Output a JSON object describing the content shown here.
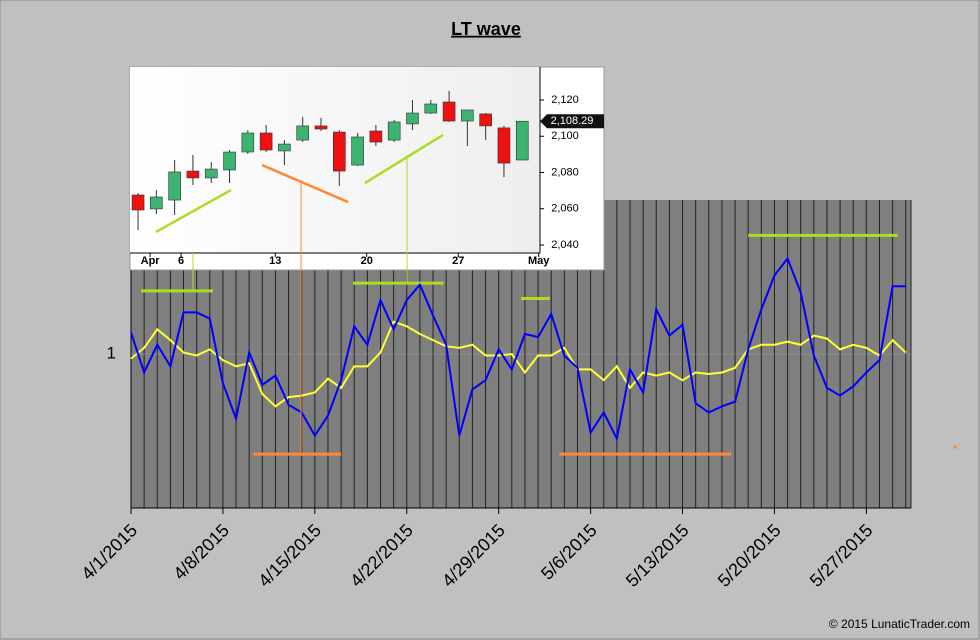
{
  "chart_data": [
    {
      "type": "line",
      "title": "LT wave",
      "x": [
        0,
        1,
        2,
        3,
        4,
        5,
        6,
        7,
        8,
        9,
        10,
        11,
        12,
        13,
        14,
        15,
        16,
        17,
        18,
        19,
        20,
        21,
        22,
        23,
        24,
        25,
        26,
        27,
        28,
        29,
        30,
        31,
        32,
        33,
        34,
        35,
        36,
        37,
        38,
        39,
        40,
        41,
        42,
        43,
        44,
        45,
        46,
        47,
        48,
        49,
        50,
        51,
        52,
        53,
        54,
        55,
        56,
        57,
        58,
        59
      ],
      "series": [
        {
          "color": "#0000ff",
          "values": [
            1.14,
            0.88,
            1.06,
            0.92,
            1.27,
            1.27,
            1.23,
            0.81,
            0.58,
            1.01,
            0.8,
            0.86,
            0.67,
            0.62,
            0.47,
            0.6,
            0.83,
            1.18,
            1.06,
            1.35,
            1.16,
            1.35,
            1.45,
            1.25,
            1.06,
            0.47,
            0.77,
            0.83,
            1.03,
            0.9,
            1.13,
            1.11,
            1.26,
            0.99,
            0.91,
            0.49,
            0.62,
            0.45,
            0.9,
            0.75,
            1.29,
            1.12,
            1.19,
            0.68,
            0.62,
            0.66,
            0.69,
            1.03,
            1.29,
            1.51,
            1.62,
            1.4,
            0.99,
            0.78,
            0.73,
            0.79,
            0.88,
            0.96,
            1.44,
            1.44
          ]
        },
        {
          "color": "#ffff33",
          "values": [
            0.97,
            1.04,
            1.16,
            1.09,
            1.01,
            0.99,
            1.03,
            0.96,
            0.92,
            0.94,
            0.74,
            0.66,
            0.72,
            0.73,
            0.75,
            0.84,
            0.78,
            0.92,
            0.92,
            1.01,
            1.21,
            1.18,
            1.13,
            1.09,
            1.05,
            1.04,
            1.06,
            0.99,
            0.99,
            1.0,
            0.88,
            0.99,
            0.99,
            1.04,
            0.9,
            0.9,
            0.83,
            0.92,
            0.78,
            0.88,
            0.86,
            0.88,
            0.83,
            0.88,
            0.87,
            0.88,
            0.91,
            1.03,
            1.06,
            1.06,
            1.08,
            1.06,
            1.12,
            1.1,
            1.03,
            1.06,
            1.04,
            0.99,
            1.09,
            1.01
          ]
        }
      ],
      "levels": [
        {
          "color": "#aadd22",
          "x": [
            0.76,
            6.24
          ],
          "value": 1.41
        },
        {
          "color": "#aadd22",
          "x": [
            16.9,
            23.8
          ],
          "value": 1.46
        },
        {
          "color": "#aadd22",
          "x": [
            29.7,
            31.9
          ],
          "value": 1.36
        },
        {
          "color": "#aadd22",
          "x": [
            47.0,
            58.4
          ],
          "value": 1.77
        },
        {
          "color": "#ff8833",
          "x": [
            9.3,
            16.0
          ],
          "value": 0.35
        },
        {
          "color": "#ff8833",
          "x": [
            32.6,
            45.7
          ],
          "value": 0.35
        }
      ],
      "xlim": [
        0,
        59.4
      ],
      "ylim": [
        0,
        2
      ],
      "xticks": [
        {
          "value": 0,
          "label": "4/1/2015"
        },
        {
          "value": 7,
          "label": "4/8/2015"
        },
        {
          "value": 14,
          "label": "4/15/2015"
        },
        {
          "value": 21,
          "label": "4/22/2015"
        },
        {
          "value": 28,
          "label": "4/29/2015"
        },
        {
          "value": 35,
          "label": "5/6/2015"
        },
        {
          "value": 42,
          "label": "5/13/2015"
        },
        {
          "value": 49,
          "label": "5/20/2015"
        },
        {
          "value": 56,
          "label": "5/27/2015"
        }
      ],
      "yticks": [
        1
      ]
    },
    {
      "type": "candlestick",
      "x": [
        0,
        1,
        2,
        3,
        4,
        5,
        6,
        7,
        8,
        9,
        10,
        11,
        12,
        13,
        14,
        15,
        16,
        17,
        18,
        19,
        20,
        21
      ],
      "open": [
        2067.6,
        2059.9,
        2064.8,
        2080.8,
        2077.0,
        2081.4,
        2091.3,
        2101.8,
        2091.9,
        2097.9,
        2105.7,
        2102.3,
        2084.1,
        2102.9,
        2097.9,
        2106.8,
        2112.8,
        2118.9,
        2108.4,
        2112.3,
        2104.6,
        2086.9
      ],
      "high": [
        2068.7,
        2070.3,
        2086.9,
        2089.7,
        2085.8,
        2092.4,
        2103.4,
        2106.2,
        2097.9,
        2110.6,
        2110.1,
        2103.4,
        2101.8,
        2106.2,
        2109.0,
        2120.0,
        2120.0,
        2125.0,
        2114.5,
        2112.8,
        2105.7,
        2108.3
      ],
      "low": [
        2048.3,
        2057.1,
        2056.6,
        2073.1,
        2074.2,
        2074.2,
        2090.2,
        2091.3,
        2084.1,
        2096.8,
        2102.9,
        2072.6,
        2083.6,
        2094.6,
        2096.8,
        2103.4,
        2112.3,
        2107.9,
        2094.6,
        2097.9,
        2077.5,
        2086.9
      ],
      "close": [
        2059.3,
        2066.5,
        2080.3,
        2077.0,
        2081.9,
        2091.3,
        2101.8,
        2092.4,
        2095.7,
        2105.7,
        2104.0,
        2080.8,
        2099.6,
        2096.8,
        2107.9,
        2112.8,
        2117.8,
        2108.4,
        2114.5,
        2105.7,
        2085.2,
        2108.29
      ],
      "up_color": "#3cb371",
      "down_color": "#ee1111",
      "trend_lines": [
        {
          "color": "#aadd22",
          "x": [
            0.98,
            5.08
          ],
          "y": [
            2047.2,
            2070.3
          ]
        },
        {
          "color": "#ff8833",
          "x": [
            6.78,
            11.48
          ],
          "y": [
            2084.1,
            2063.7
          ]
        },
        {
          "color": "#aadd22",
          "x": [
            12.4,
            16.67
          ],
          "y": [
            2074.2,
            2100.7
          ]
        }
      ],
      "last_price": {
        "value": 2108.29,
        "label": "2,108.29"
      },
      "xlim": [
        -0.44,
        21.97
      ],
      "ylim": [
        2035.6,
        2138.2
      ],
      "xticks": [
        {
          "value": 0.66,
          "label": "Apr"
        },
        {
          "value": 2.35,
          "label": "6"
        },
        {
          "value": 7.5,
          "label": "13"
        },
        {
          "value": 12.5,
          "label": "20"
        },
        {
          "value": 17.5,
          "label": "27"
        },
        {
          "value": 21.9,
          "label": "May"
        }
      ],
      "yticks": [
        {
          "value": 2040,
          "label": "2,040"
        },
        {
          "value": 2060,
          "label": "2,060"
        },
        {
          "value": 2080,
          "label": "2,080"
        },
        {
          "value": 2100,
          "label": "2,100"
        },
        {
          "value": 2120,
          "label": "2,120"
        }
      ]
    }
  ],
  "footer": "© 2015 LunaticTrader.com"
}
